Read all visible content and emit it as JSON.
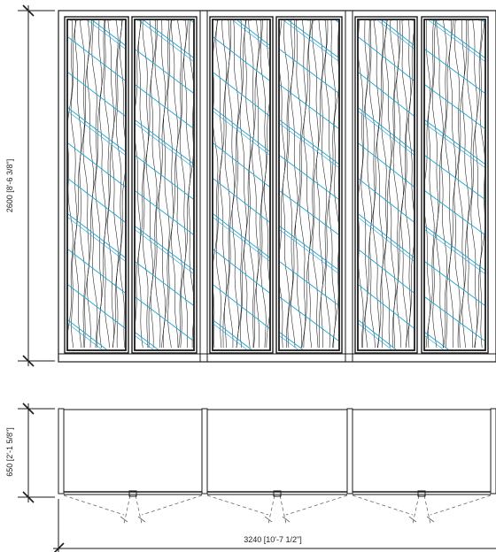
{
  "dimensions": {
    "height_elevation": "2600 [8'-6 3/8\"]",
    "depth_plan": "650 [2'-1 5/8\"]",
    "total_width": "3240 [10'-7 1/2\"]"
  },
  "colors": {
    "line": "#1a1a1a",
    "glass_accent": "#1aa3d1",
    "dashed": "#666666"
  }
}
